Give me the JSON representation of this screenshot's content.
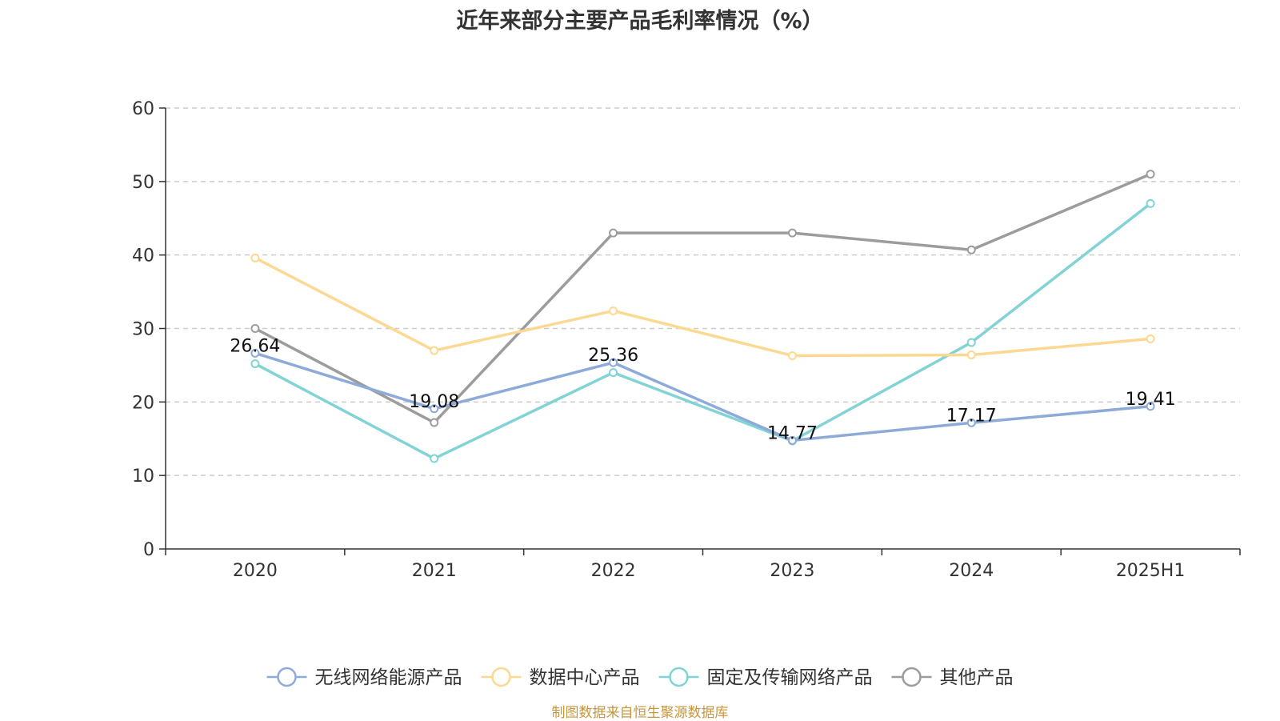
{
  "chart_data": {
    "type": "line",
    "title": "近年来部分主要产品毛利率情况（%）",
    "categories": [
      "2020",
      "2021",
      "2022",
      "2023",
      "2024",
      "2025H1"
    ],
    "ylim": [
      0,
      60
    ],
    "yticks": [
      0,
      10,
      20,
      30,
      40,
      50,
      60
    ],
    "grid": true,
    "legend_position": "bottom",
    "series": [
      {
        "name": "无线网络能源产品",
        "color": "#8eaad8",
        "values": [
          26.64,
          19.08,
          25.36,
          14.77,
          17.17,
          19.41
        ],
        "labels": [
          "26.64",
          "19.08",
          "25.36",
          "14.77",
          "17.17",
          "19.41"
        ]
      },
      {
        "name": "数据中心产品",
        "color": "#fcd892",
        "values": [
          39.6,
          27.0,
          32.4,
          26.3,
          26.4,
          28.6
        ]
      },
      {
        "name": "固定及传输网络产品",
        "color": "#82d3d5",
        "values": [
          25.2,
          12.3,
          24.0,
          14.7,
          28.1,
          47.0
        ]
      },
      {
        "name": "其他产品",
        "color": "#9c9c9c",
        "values": [
          30.0,
          17.2,
          43.0,
          43.0,
          40.7,
          51.0
        ]
      }
    ]
  },
  "source_note": "制图数据来自恒生聚源数据库"
}
